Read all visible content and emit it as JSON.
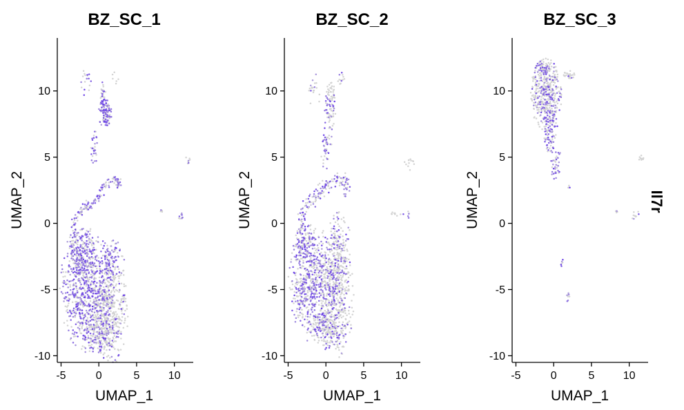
{
  "chart_data": {
    "type": "scatter",
    "feature_label": "Il7r",
    "low_color": "#d3d3d3",
    "high_color": "#6a3fe8",
    "xlim": [
      -5.5,
      12.5
    ],
    "ylim": [
      -10.5,
      14
    ],
    "x_ticks": [
      -5,
      0,
      5,
      10
    ],
    "y_ticks": [
      -10,
      -5,
      0,
      5,
      10
    ],
    "panels": [
      {
        "title": "BZ_SC_1",
        "xlabel": "UMAP_1",
        "ylabel": "UMAP_2",
        "clusters": [
          {
            "cx": -1.5,
            "cy": -5.0,
            "rx": 2.3,
            "ry": 3.0,
            "n": 850,
            "expr": 0.55
          },
          {
            "cx": 1.5,
            "cy": -6.5,
            "rx": 1.5,
            "ry": 2.8,
            "n": 450,
            "expr": 0.2
          },
          {
            "cx": 0.3,
            "cy": -8.3,
            "rx": 1.5,
            "ry": 0.9,
            "n": 150,
            "expr": 0.25
          },
          {
            "cx": -2.5,
            "cy": -2.2,
            "rx": 1.2,
            "ry": 1.2,
            "n": 150,
            "expr": 0.6
          },
          {
            "cx": 1.8,
            "cy": -2.8,
            "rx": 1.0,
            "ry": 1.0,
            "n": 90,
            "expr": 0.55
          },
          {
            "cx": 0.9,
            "cy": 8.3,
            "rx": 0.6,
            "ry": 0.7,
            "n": 110,
            "expr": 0.7
          },
          {
            "cx": 0.6,
            "cy": 9.8,
            "rx": 0.3,
            "ry": 0.6,
            "n": 25,
            "expr": 0.5
          },
          {
            "cx": -1.8,
            "cy": 10.6,
            "rx": 0.5,
            "ry": 0.6,
            "n": 18,
            "expr": 0.3
          },
          {
            "cx": -0.6,
            "cy": 5.8,
            "rx": 0.3,
            "ry": 1.0,
            "n": 30,
            "expr": 0.6
          },
          {
            "cx": 11.8,
            "cy": 4.8,
            "rx": 0.3,
            "ry": 0.2,
            "n": 8,
            "expr": 0.1
          },
          {
            "cx": 10.9,
            "cy": 0.6,
            "rx": 0.25,
            "ry": 0.3,
            "n": 10,
            "expr": 0.6
          },
          {
            "cx": 8.3,
            "cy": 0.9,
            "rx": 0.2,
            "ry": 0.1,
            "n": 4,
            "expr": 0.2
          },
          {
            "cx": 2.2,
            "cy": 11.0,
            "rx": 0.3,
            "ry": 0.4,
            "n": 6,
            "expr": 0.1
          }
        ],
        "paths": [
          {
            "points": [
              [
                -3.3,
                -1.0
              ],
              [
                -3.0,
                0.5
              ],
              [
                -2.0,
                1.2
              ],
              [
                -1.0,
                1.4
              ],
              [
                0.0,
                2.2
              ],
              [
                1.0,
                3.0
              ],
              [
                2.0,
                3.4
              ],
              [
                2.8,
                2.9
              ]
            ],
            "n": 140,
            "jitter": 0.2,
            "expr": 0.6
          }
        ]
      },
      {
        "title": "BZ_SC_2",
        "xlabel": "UMAP_1",
        "ylabel": "UMAP_2",
        "clusters": [
          {
            "cx": -1.8,
            "cy": -4.5,
            "rx": 2.0,
            "ry": 2.8,
            "n": 650,
            "expr": 0.45
          },
          {
            "cx": 1.5,
            "cy": -5.5,
            "rx": 1.4,
            "ry": 3.0,
            "n": 500,
            "expr": 0.2
          },
          {
            "cx": 0.2,
            "cy": -8.0,
            "rx": 1.5,
            "ry": 1.0,
            "n": 160,
            "expr": 0.25
          },
          {
            "cx": -2.8,
            "cy": -1.5,
            "rx": 1.0,
            "ry": 1.0,
            "n": 110,
            "expr": 0.5
          },
          {
            "cx": 1.7,
            "cy": -1.5,
            "rx": 1.0,
            "ry": 1.5,
            "n": 120,
            "expr": 0.35
          },
          {
            "cx": 0.6,
            "cy": 9.0,
            "rx": 0.5,
            "ry": 1.3,
            "n": 90,
            "expr": 0.3
          },
          {
            "cx": 0.0,
            "cy": 6.0,
            "rx": 0.5,
            "ry": 1.3,
            "n": 45,
            "expr": 0.45
          },
          {
            "cx": -1.5,
            "cy": 10.0,
            "rx": 0.6,
            "ry": 0.8,
            "n": 20,
            "expr": 0.3
          },
          {
            "cx": 2.0,
            "cy": 11.0,
            "rx": 0.3,
            "ry": 0.4,
            "n": 12,
            "expr": 0.2
          },
          {
            "cx": 11.3,
            "cy": 4.5,
            "rx": 0.6,
            "ry": 0.3,
            "n": 12,
            "expr": 0.05
          },
          {
            "cx": 9.5,
            "cy": 0.7,
            "rx": 0.6,
            "ry": 0.15,
            "n": 10,
            "expr": 0.2
          },
          {
            "cx": 11.0,
            "cy": 0.6,
            "rx": 0.2,
            "ry": 0.2,
            "n": 5,
            "expr": 0.6
          }
        ],
        "paths": [
          {
            "points": [
              [
                -3.5,
                -1.0
              ],
              [
                -3.2,
                0.5
              ],
              [
                -2.5,
                1.5
              ],
              [
                -1.5,
                2.0
              ],
              [
                -0.5,
                2.5
              ],
              [
                0.5,
                3.0
              ],
              [
                1.5,
                3.4
              ],
              [
                2.5,
                3.2
              ],
              [
                2.8,
                2.2
              ]
            ],
            "n": 160,
            "jitter": 0.25,
            "expr": 0.5
          }
        ]
      },
      {
        "title": "BZ_SC_3",
        "xlabel": "UMAP_1",
        "ylabel": "UMAP_2",
        "clusters": [
          {
            "cx": -1.0,
            "cy": 9.8,
            "rx": 1.3,
            "ry": 1.8,
            "n": 450,
            "expr": 0.3
          },
          {
            "cx": -0.4,
            "cy": 7.0,
            "rx": 0.6,
            "ry": 1.2,
            "n": 90,
            "expr": 0.5
          },
          {
            "cx": 0.3,
            "cy": 4.5,
            "rx": 0.5,
            "ry": 0.8,
            "n": 40,
            "expr": 0.6
          },
          {
            "cx": 2.0,
            "cy": 11.2,
            "rx": 0.5,
            "ry": 0.2,
            "n": 25,
            "expr": 0.15
          },
          {
            "cx": -1.3,
            "cy": 11.6,
            "rx": 0.7,
            "ry": 0.3,
            "n": 40,
            "expr": 0.3
          },
          {
            "cx": 11.6,
            "cy": 4.9,
            "rx": 0.3,
            "ry": 0.15,
            "n": 8,
            "expr": 0.05
          },
          {
            "cx": 10.8,
            "cy": 0.6,
            "rx": 0.3,
            "ry": 0.4,
            "n": 10,
            "expr": 0.2
          },
          {
            "cx": 8.4,
            "cy": 0.9,
            "rx": 0.2,
            "ry": 0.1,
            "n": 4,
            "expr": 0.2
          },
          {
            "cx": 1.1,
            "cy": -3.0,
            "rx": 0.1,
            "ry": 0.3,
            "n": 6,
            "expr": 0.8
          },
          {
            "cx": 1.9,
            "cy": -5.4,
            "rx": 0.15,
            "ry": 0.4,
            "n": 8,
            "expr": 0.4
          },
          {
            "cx": 2.1,
            "cy": 2.9,
            "rx": 0.2,
            "ry": 0.2,
            "n": 4,
            "expr": 0.5
          }
        ],
        "paths": []
      }
    ]
  }
}
